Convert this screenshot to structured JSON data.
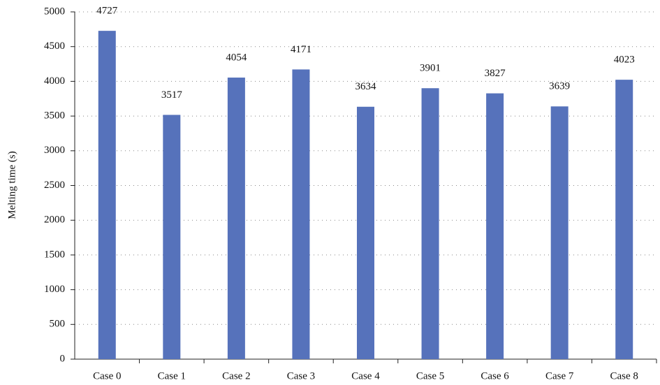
{
  "chart_data": {
    "type": "bar",
    "y_label": "Melting time (s)",
    "categories": [
      "Case 0",
      "Case 1",
      "Case 2",
      "Case 3",
      "Case 4",
      "Case 5",
      "Case 6",
      "Case 7",
      "Case 8"
    ],
    "values": [
      4727,
      3517,
      4054,
      4171,
      3634,
      3901,
      3827,
      3639,
      4023
    ],
    "color": "#5672bb",
    "ylim": [
      0,
      5000
    ],
    "yticks": [
      0,
      500,
      1000,
      1500,
      2000,
      2500,
      3000,
      3500,
      4000,
      4500,
      5000
    ],
    "grid": true
  }
}
